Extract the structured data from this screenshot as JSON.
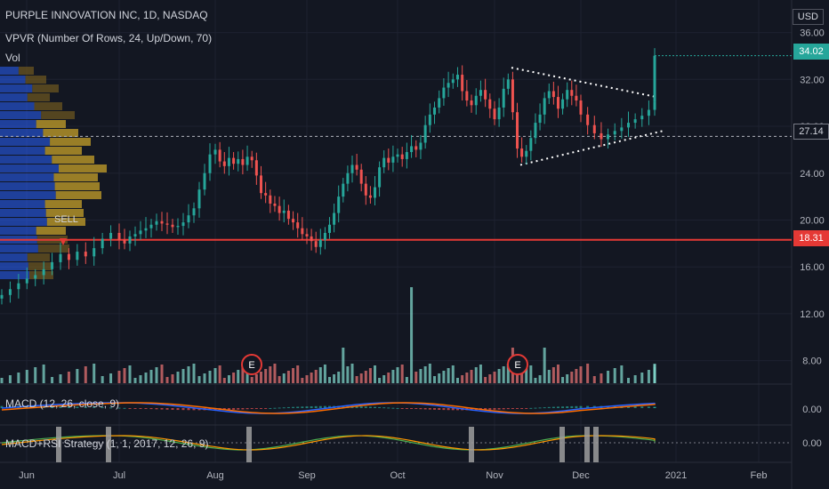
{
  "header": {
    "title": "PURPLE INNOVATION INC, 1D, NASDAQ",
    "indicator": "VPVR (Number Of Rows, 24, Up/Down, 70)",
    "volume_label": "Vol",
    "macd_label": "MACD (12, 26, close, 9)",
    "strategy_label": "MACD+RSI Strategy (1, 1, 2017, 12, 26, 9)",
    "currency": "USD"
  },
  "signals": {
    "sell_label": "SELL"
  },
  "price_tags": {
    "current": "34.02",
    "dashed_level": "27.14",
    "red_level": "18.31"
  },
  "chart_data": {
    "type": "candlestick",
    "x_labels": [
      "Jun",
      "Jul",
      "Aug",
      "Sep",
      "Oct",
      "Nov",
      "Dec",
      "2021",
      "Feb"
    ],
    "y_ticks": [
      "36.00",
      "32.00",
      "28.00",
      "24.00",
      "20.00",
      "16.00",
      "12.00",
      "8.00"
    ],
    "y_tick_values": [
      36,
      32,
      28,
      24,
      20,
      16,
      12,
      8
    ],
    "ylim": [
      6,
      36.5
    ],
    "macd_ticks": [
      "0.00"
    ],
    "strategy_ticks": [
      "0.00"
    ],
    "events": [
      "E",
      "E"
    ],
    "reference_lines": {
      "current": 34.02,
      "dashed": 27.14,
      "red": 18.31
    },
    "close_series": [
      {
        "month": "Jun",
        "values": [
          13.6,
          14.1,
          14.6,
          15.0,
          15.3,
          15.8,
          16.4,
          17.1,
          16.6,
          17.3,
          16.9,
          17.6,
          18.4,
          18.9
        ]
      },
      {
        "month": "Jul",
        "values": [
          18.3,
          18.0,
          18.6,
          18.8,
          19.1,
          19.3,
          19.6,
          19.9,
          19.7,
          19.6,
          19.4,
          19.5,
          19.8,
          20.4,
          21.0,
          22.6,
          24.0,
          25.6
        ]
      },
      {
        "month": "Aug",
        "values": [
          26.0,
          25.0,
          24.6,
          25.3,
          24.8,
          25.2,
          24.7,
          25.4,
          25.1,
          23.8,
          22.3,
          22.1,
          21.4,
          21.2,
          20.6,
          20.8,
          20.1,
          19.8,
          19.3,
          18.8
        ]
      },
      {
        "month": "Sep",
        "values": [
          18.6,
          18.2,
          17.7,
          18.3,
          18.9,
          19.6,
          20.6,
          22.0,
          23.1,
          24.0,
          24.7,
          24.3,
          23.1,
          22.1,
          21.9,
          22.8,
          24.5,
          25.3,
          24.9,
          25.4
        ]
      },
      {
        "month": "Oct",
        "values": [
          25.6,
          25.2,
          25.8,
          26.3,
          26.0,
          26.6,
          28.1,
          29.0,
          29.6,
          30.4,
          31.3,
          31.7,
          32.0,
          32.4,
          31.0,
          30.2,
          29.8,
          30.6,
          31.1,
          30.3,
          29.5
        ]
      },
      {
        "month": "Nov",
        "values": [
          28.6,
          29.6,
          31.2,
          32.0,
          29.2,
          26.1,
          25.4,
          25.9,
          27.0,
          28.3,
          29.0,
          30.4,
          31.0,
          30.5,
          29.5,
          30.3,
          31.1,
          30.6,
          30.2
        ]
      },
      {
        "month": "Dec",
        "values": [
          29.0,
          28.1,
          27.4,
          26.9,
          27.3,
          27.6,
          27.9,
          28.3,
          28.6,
          28.9,
          29.4,
          30.1,
          31.0,
          34.02
        ]
      }
    ]
  }
}
